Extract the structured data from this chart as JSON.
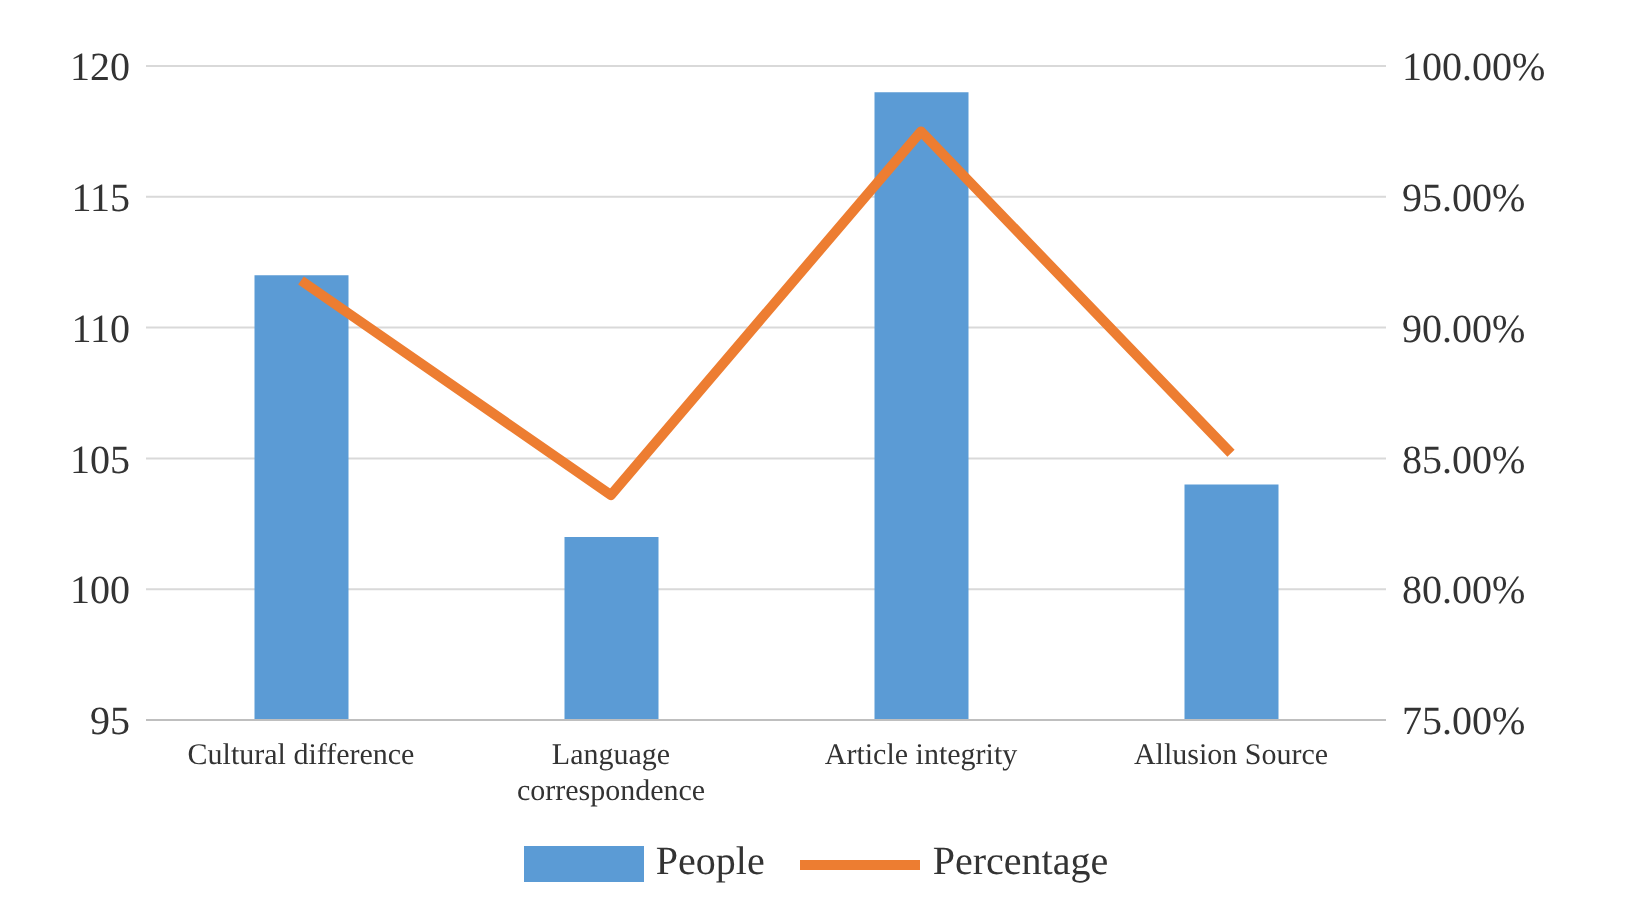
{
  "chart_data": {
    "type": "bar",
    "categories": [
      "Cultural difference",
      "Language correspondence",
      "Article integrity",
      "Allusion Source"
    ],
    "series": [
      {
        "name": "People",
        "color": "#5b9bd5",
        "values": [
          112,
          102,
          119,
          104
        ]
      },
      {
        "name": "Percentage",
        "type": "line",
        "axis": "y2",
        "color": "#ed7d31",
        "values": [
          91.8,
          83.6,
          97.5,
          85.2
        ]
      }
    ],
    "ylim": [
      95,
      120
    ],
    "yticks": [
      95,
      100,
      105,
      110,
      115,
      120
    ],
    "y2lim": [
      75,
      100
    ],
    "y2ticks": [
      {
        "value": 75,
        "label": "75.00%"
      },
      {
        "value": 80,
        "label": "80.00%"
      },
      {
        "value": 85,
        "label": "85.00%"
      },
      {
        "value": 90,
        "label": "90.00%"
      },
      {
        "value": 95,
        "label": "95.00%"
      },
      {
        "value": 100,
        "label": "100.00%"
      }
    ],
    "grid": "y",
    "legend": "bottom",
    "marker": "none",
    "line_style": "solid"
  }
}
